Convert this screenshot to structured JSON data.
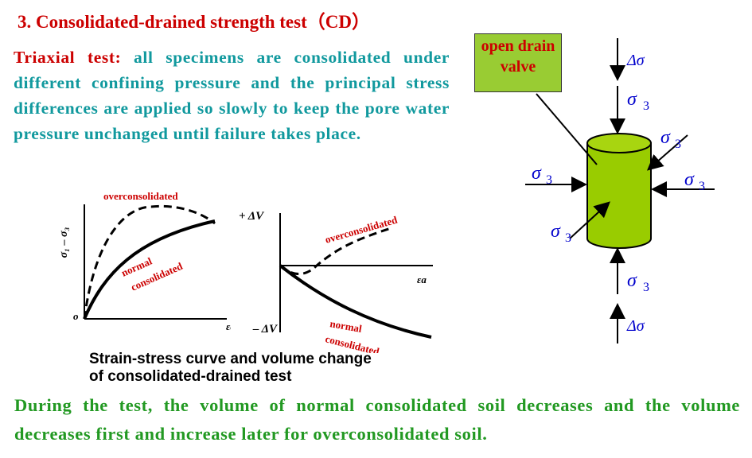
{
  "title": "3. Consolidated-drained strength test（CD）",
  "intro": {
    "lead": "Triaxial test:",
    "text": " all specimens are consolidated under different confining pressure and the principal stress differences are applied so slowly to keep the pore water pressure unchanged until failure takes place."
  },
  "figure_left": {
    "ylabel": "σ₁ – σ₃",
    "origin": "o",
    "xlabel": "εa",
    "curve_over": "overconsolidated",
    "curve_normal_1": "normal",
    "curve_normal_2": "consolidated"
  },
  "figure_right": {
    "ylabel_pos": "+ ΔV",
    "ylabel_neg": "– ΔV",
    "xlabel": "εa",
    "curve_over": "overconsolidated",
    "curve_normal_1": "normal",
    "curve_normal_2": "consolidated"
  },
  "caption": {
    "line1": "Strain-stress curve and volume change",
    "line2": "of consolidated-drained test"
  },
  "specimen": {
    "valve_line1": "open drain",
    "valve_line2": "valve",
    "sigma3": "σ",
    "sub3": "3",
    "delta_sigma": "Δσ",
    "color_fill": "#99cc00"
  },
  "conclusion": "During the test, the volume of normal consolidated soil decreases and the volume decreases first and increase later for overconsolidated soil."
}
